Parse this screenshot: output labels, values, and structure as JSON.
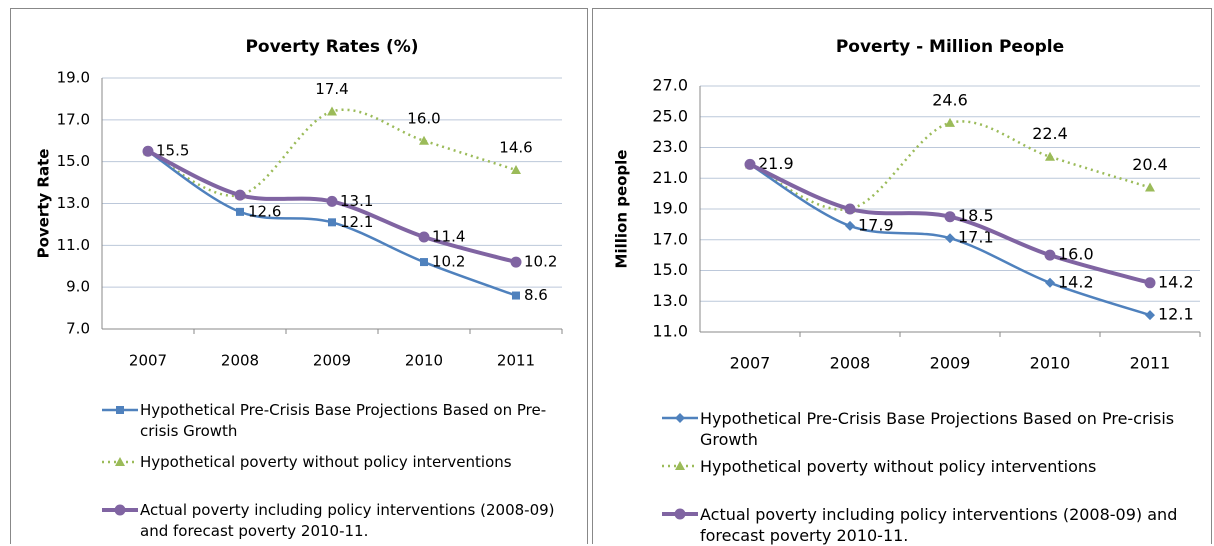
{
  "chart_data": [
    {
      "type": "line",
      "title": "Poverty Rates (%)",
      "y_label": "Poverty Rate",
      "categories": [
        "2007",
        "2008",
        "2009",
        "2010",
        "2011"
      ],
      "ylim": [
        7,
        19
      ],
      "yticks": [
        {
          "value": 7,
          "label": "7.0"
        },
        {
          "value": 9,
          "label": "9.0"
        },
        {
          "value": 11,
          "label": "11.0"
        },
        {
          "value": 13,
          "label": "13.0"
        },
        {
          "value": 15,
          "label": "15.0"
        },
        {
          "value": 17,
          "label": "17.0"
        },
        {
          "value": 19,
          "label": "19.0"
        }
      ],
      "grid": true,
      "series": [
        {
          "name": "Hypothetical Pre-Crisis Base Projections Based on Pre-crisis Growth",
          "color": "#4f81bd",
          "marker": "square",
          "dash": false,
          "values": [
            15.5,
            12.6,
            12.1,
            10.2,
            8.6
          ],
          "value_labels": [
            "15.5",
            "12.6",
            "12.1",
            "10.2",
            "8.6"
          ]
        },
        {
          "name": "Hypothetical poverty without policy interventions",
          "color": "#9bbb59",
          "marker": "triangle",
          "dash": true,
          "values": [
            15.5,
            13.4,
            17.4,
            16.0,
            14.6
          ],
          "value_labels": [
            null,
            null,
            "17.4",
            "16.0",
            "14.6"
          ]
        },
        {
          "name": "Actual poverty including policy interventions (2008-09) and forecast poverty 2010-11.",
          "color": "#8064a2",
          "marker": "circle",
          "dash": false,
          "values": [
            15.5,
            13.4,
            13.1,
            11.4,
            10.2
          ],
          "value_labels": [
            null,
            null,
            "13.1",
            "11.4",
            "10.2"
          ]
        }
      ]
    },
    {
      "type": "line",
      "title": "Poverty - Million People",
      "y_label": "Million people",
      "categories": [
        "2007",
        "2008",
        "2009",
        "2010",
        "2011"
      ],
      "ylim": [
        11,
        27
      ],
      "yticks": [
        {
          "value": 11,
          "label": "11.0"
        },
        {
          "value": 13,
          "label": "13.0"
        },
        {
          "value": 15,
          "label": "15.0"
        },
        {
          "value": 17,
          "label": "17.0"
        },
        {
          "value": 19,
          "label": "19.0"
        },
        {
          "value": 21,
          "label": "21.0"
        },
        {
          "value": 23,
          "label": "23.0"
        },
        {
          "value": 25,
          "label": "25.0"
        },
        {
          "value": 27,
          "label": "27.0"
        }
      ],
      "grid": true,
      "series": [
        {
          "name": "Hypothetical Pre-Crisis Base Projections Based on Pre-crisis Growth",
          "color": "#4f81bd",
          "marker": "diamond",
          "dash": false,
          "values": [
            21.9,
            17.9,
            17.1,
            14.2,
            12.1
          ],
          "value_labels": [
            "21.9",
            "17.9",
            "17.1",
            "14.2",
            "12.1"
          ]
        },
        {
          "name": "Hypothetical poverty without policy interventions",
          "color": "#9bbb59",
          "marker": "triangle",
          "dash": true,
          "values": [
            21.9,
            19.0,
            24.6,
            22.4,
            20.4
          ],
          "value_labels": [
            null,
            null,
            "24.6",
            "22.4",
            "20.4"
          ]
        },
        {
          "name": "Actual poverty including policy interventions (2008-09) and forecast poverty 2010-11.",
          "color": "#8064a2",
          "marker": "circle",
          "dash": false,
          "values": [
            21.9,
            19.0,
            18.5,
            16.0,
            14.2
          ],
          "value_labels": [
            null,
            null,
            "18.5",
            "16.0",
            "14.2"
          ]
        }
      ]
    }
  ]
}
